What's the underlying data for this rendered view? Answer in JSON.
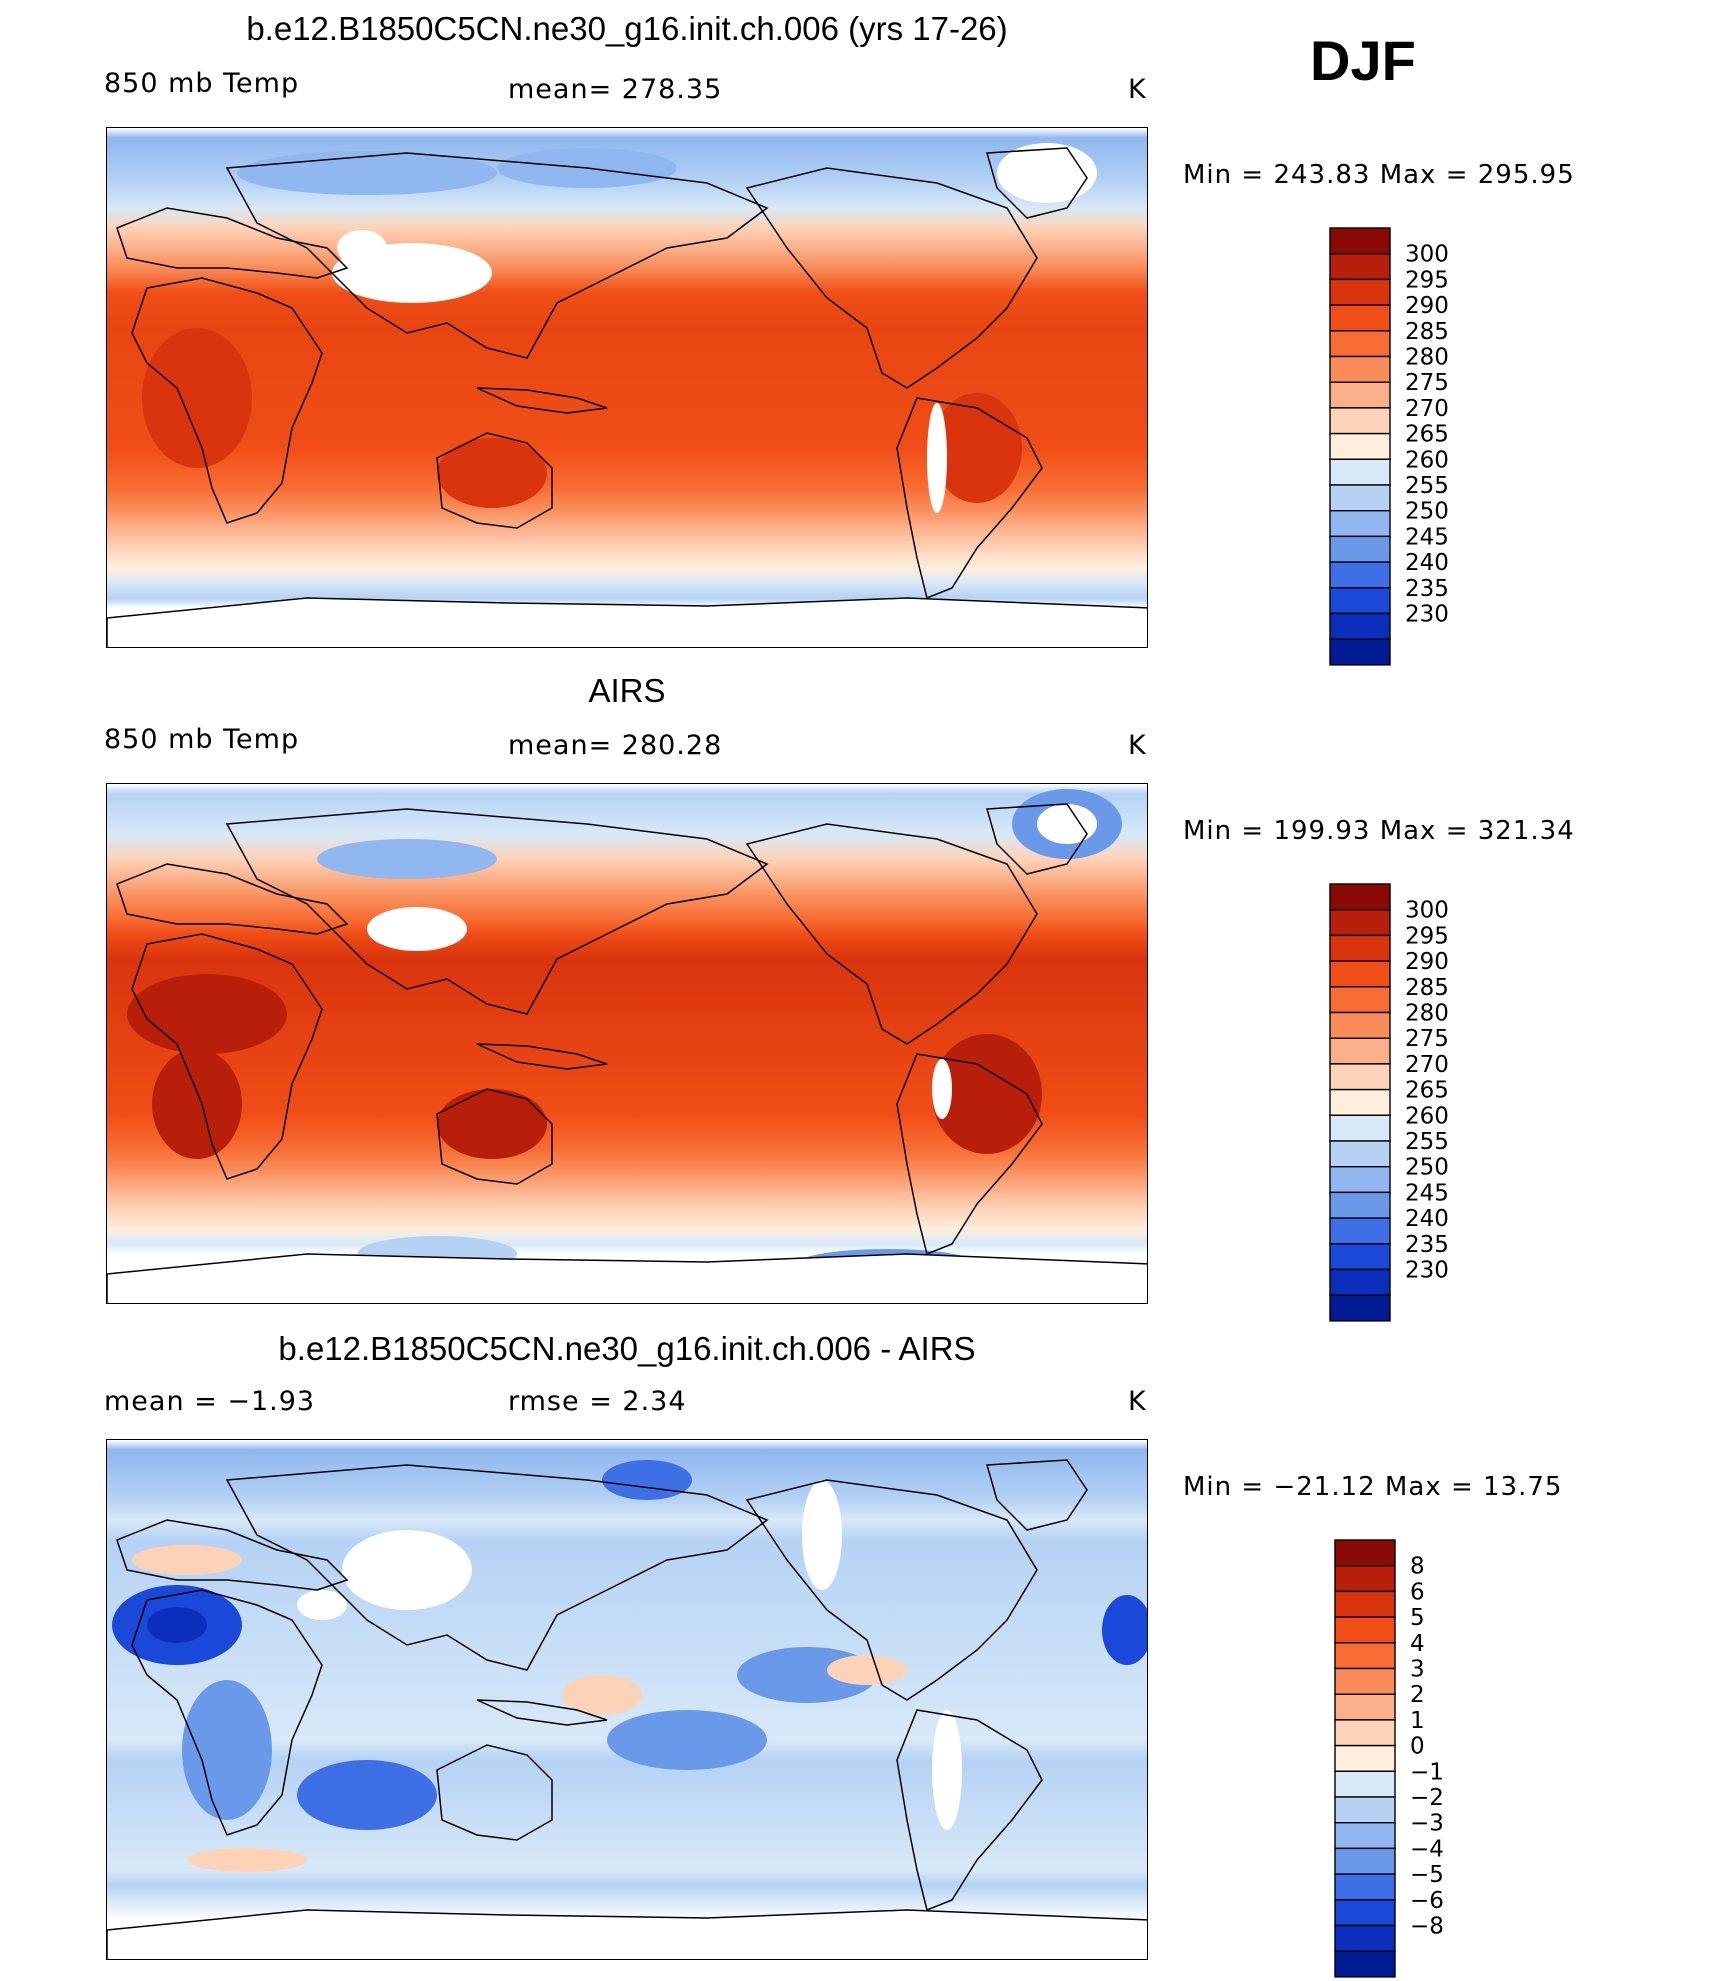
{
  "header": {
    "season": "DJF"
  },
  "panels": [
    {
      "title": "b.e12.B1850C5CN.ne30_g16.init.ch.006 (yrs 17-26)",
      "left": "850 mb Temp",
      "center": "mean=  278.35",
      "right": "K",
      "minmax": "Min  =  243.83  Max  =  295.95",
      "palette": "model"
    },
    {
      "title": "AIRS",
      "left": "850 mb Temp",
      "center": "mean=  280.28",
      "right": "K",
      "minmax": "Min  =  199.93  Max  =  321.34",
      "palette": "obs"
    },
    {
      "title": "b.e12.B1850C5CN.ne30_g16.init.ch.006 - AIRS",
      "left": "mean  =    −1.93",
      "center": "rmse  =     2.34",
      "right": "K",
      "minmax": "Min  =  −21.12  Max  =    13.75",
      "palette": "diff"
    }
  ],
  "colorbars": {
    "temp": {
      "labels": [
        "300",
        "295",
        "290",
        "285",
        "280",
        "275",
        "270",
        "265",
        "260",
        "255",
        "250",
        "245",
        "240",
        "235",
        "230"
      ],
      "colors": [
        "#8b0a06",
        "#b81f0a",
        "#d9340e",
        "#f04e16",
        "#f76d33",
        "#f98c58",
        "#fbb08a",
        "#fdd3b8",
        "#fdeedd",
        "#d8e9f8",
        "#b5d2f4",
        "#90b7ef",
        "#6a99ea",
        "#3f6fe4",
        "#1a48d8",
        "#0a2fbd",
        "#001b93"
      ]
    },
    "diff": {
      "labels": [
        "8",
        "6",
        "5",
        "4",
        "3",
        "2",
        "1",
        "0",
        "−1",
        "−2",
        "−3",
        "−4",
        "−5",
        "−6",
        "−8"
      ],
      "colors": [
        "#8b0a06",
        "#b81f0a",
        "#d9340e",
        "#f04e16",
        "#f76d33",
        "#f98c58",
        "#fbb08a",
        "#fdd3b8",
        "#fdeedd",
        "#d8e9f8",
        "#b5d2f4",
        "#90b7ef",
        "#6a99ea",
        "#3f6fe4",
        "#1a48d8",
        "#0a2fbd",
        "#001b93"
      ]
    }
  },
  "chart_data": [
    {
      "type": "heatmap",
      "title": "b.e12.B1850C5CN.ne30_g16.init.ch.006 (yrs 17-26)",
      "variable": "850 mb Temp",
      "units": "K",
      "mean": 278.35,
      "min": 243.83,
      "max": 295.95,
      "levels": [
        230,
        235,
        240,
        245,
        250,
        255,
        260,
        265,
        270,
        275,
        280,
        285,
        290,
        295,
        300
      ],
      "grid": false,
      "projection": "cylindrical equidistant, centered on Pacific"
    },
    {
      "type": "heatmap",
      "title": "AIRS",
      "variable": "850 mb Temp",
      "units": "K",
      "mean": 280.28,
      "min": 199.93,
      "max": 321.34,
      "levels": [
        230,
        235,
        240,
        245,
        250,
        255,
        260,
        265,
        270,
        275,
        280,
        285,
        290,
        295,
        300
      ],
      "grid": false
    },
    {
      "type": "heatmap",
      "title": "b.e12.B1850C5CN.ne30_g16.init.ch.006 - AIRS",
      "units": "K",
      "mean": -1.93,
      "rmse": 2.34,
      "min": -21.12,
      "max": 13.75,
      "levels": [
        -8,
        -6,
        -5,
        -4,
        -3,
        -2,
        -1,
        0,
        1,
        2,
        3,
        4,
        5,
        6,
        8
      ],
      "grid": false
    }
  ]
}
